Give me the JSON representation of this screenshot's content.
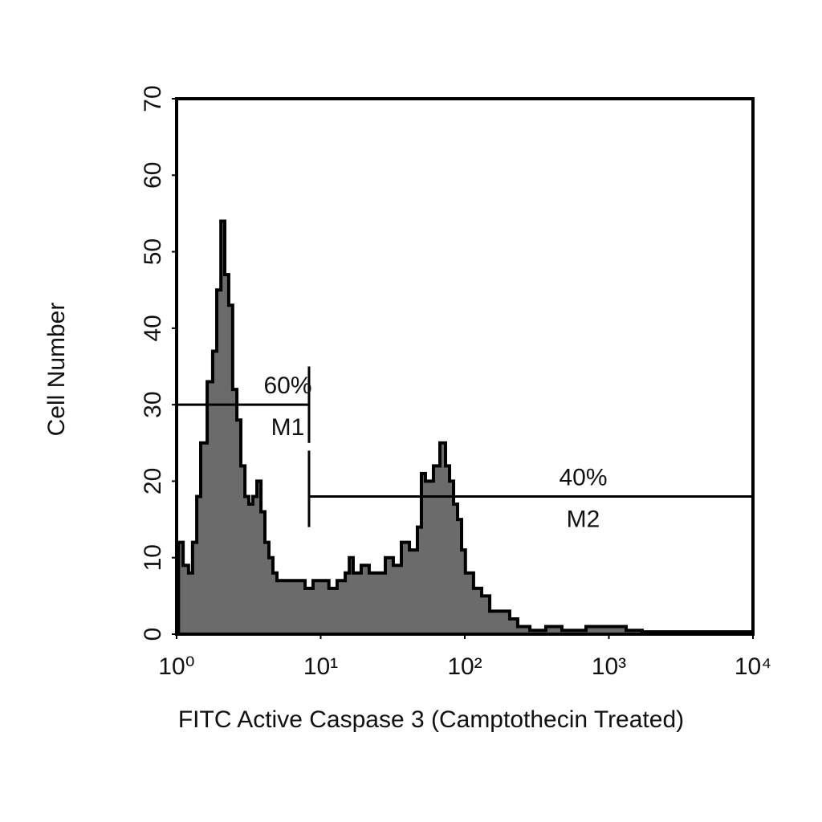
{
  "chart_data": {
    "type": "histogram-step",
    "x_label": "FITC Active Caspase 3 (Camptothecin Treated)",
    "y_label": "Cell Number",
    "xlog": true,
    "xlim": [
      1,
      10000
    ],
    "ylim": [
      0,
      70
    ],
    "xticks": [
      {
        "value": 1,
        "label": "10⁰"
      },
      {
        "value": 10,
        "label": "10¹"
      },
      {
        "value": 100,
        "label": "10²"
      },
      {
        "value": 1000,
        "label": "10³"
      },
      {
        "value": 10000,
        "label": "10⁴"
      }
    ],
    "yticks": [
      0,
      10,
      20,
      30,
      40,
      50,
      60,
      70
    ],
    "fill": "#6b6b6b",
    "stroke": "#000000",
    "x": [
      1.03,
      1.11,
      1.21,
      1.29,
      1.38,
      1.47,
      1.63,
      1.78,
      1.9,
      2.03,
      2.16,
      2.3,
      2.45,
      2.62,
      2.79,
      2.98,
      3.17,
      3.38,
      3.61,
      3.85,
      4.1,
      4.37,
      4.66,
      4.97,
      6.03,
      6.85,
      7.79,
      8.85,
      10.1,
      11.4,
      13,
      14.8,
      15.8,
      16.8,
      19.1,
      21.7,
      24.7,
      28.1,
      31.9,
      36.3,
      41.3,
      46.9,
      50,
      53.3,
      60.6,
      67.2,
      73.5,
      78.4,
      83.6,
      89.1,
      95,
      101,
      115,
      131,
      149,
      169,
      205,
      233,
      283,
      365,
      472,
      694,
      1020,
      1318,
      1703,
      3233,
      9623
    ],
    "values": [
      12,
      9,
      8,
      12,
      18,
      25,
      33,
      37,
      45,
      54,
      47,
      43,
      32,
      28,
      22,
      18,
      17,
      18,
      20,
      16,
      12,
      10,
      8,
      7,
      7,
      7,
      6,
      7,
      7,
      6,
      7,
      8,
      10,
      8,
      9,
      8,
      8,
      10,
      9,
      12,
      11,
      14,
      21,
      20,
      22,
      25,
      22,
      20,
      17,
      15,
      11,
      8,
      6,
      5,
      3,
      3,
      2,
      1,
      0.5,
      1,
      0.5,
      1,
      1,
      0.5,
      0.3,
      0.3,
      0.3
    ],
    "gates": [
      {
        "name": "M1",
        "percent": "60%",
        "range": [
          1,
          8.3
        ],
        "y": 30,
        "tick": [
          25,
          35
        ]
      },
      {
        "name": "M2",
        "percent": "40%",
        "range": [
          8.3,
          10000
        ],
        "y": 18,
        "tick": [
          14,
          24
        ]
      }
    ]
  }
}
